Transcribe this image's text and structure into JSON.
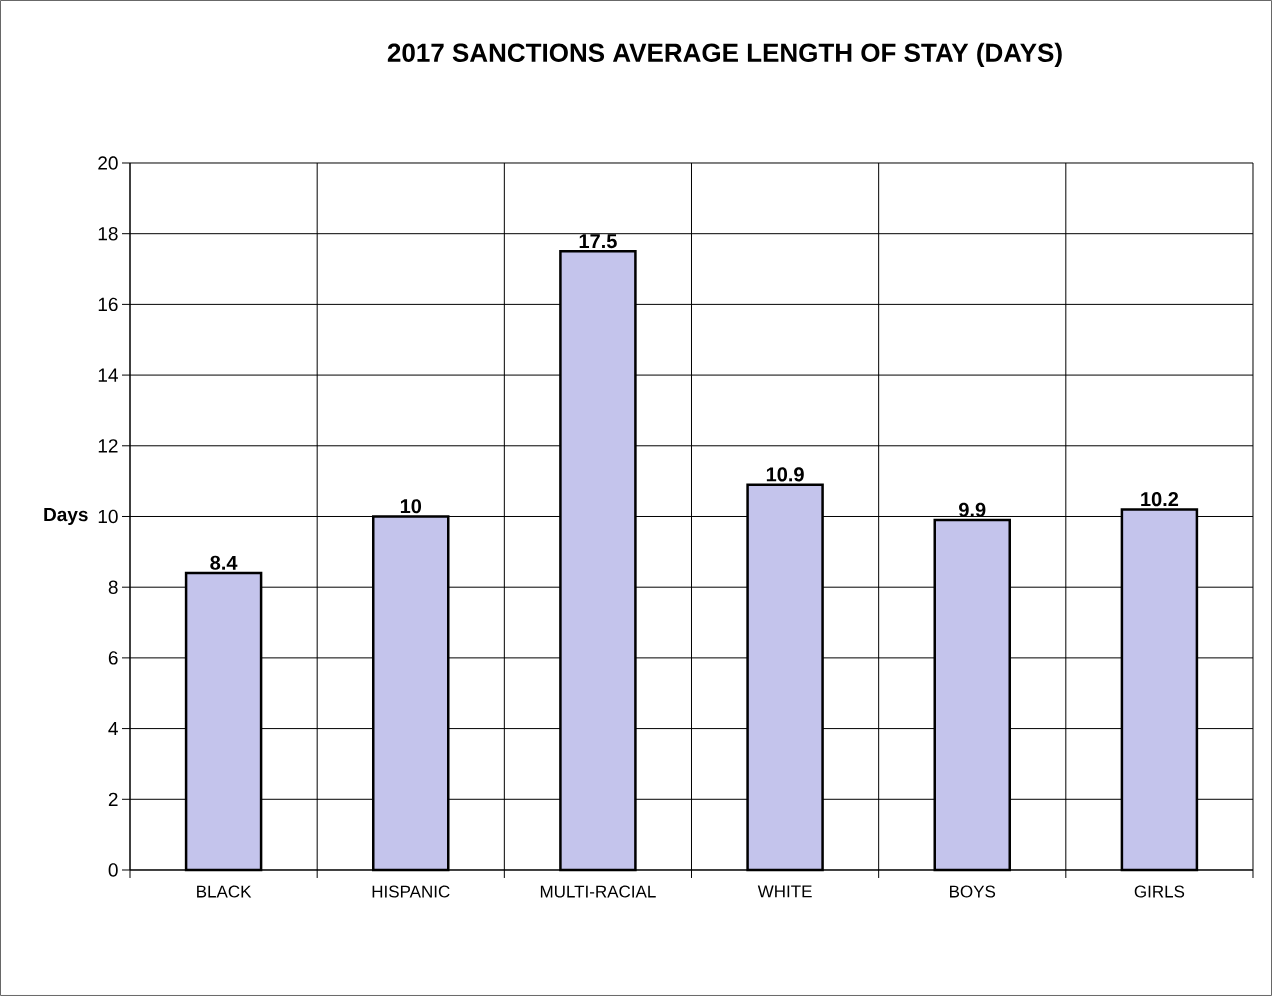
{
  "chart_data": {
    "type": "bar",
    "title": "2017 SANCTIONS AVERAGE LENGTH OF STAY (DAYS)",
    "ylabel": "Days",
    "categories": [
      "BLACK",
      "HISPANIC",
      "MULTI-RACIAL",
      "WHITE",
      "BOYS",
      "GIRLS"
    ],
    "values": [
      8.4,
      10,
      17.5,
      10.9,
      9.9,
      10.2
    ],
    "color": "#c4c4ec",
    "ylim": [
      0,
      20
    ],
    "yticks": [
      0,
      2,
      4,
      6,
      8,
      10,
      12,
      14,
      16,
      18,
      20
    ],
    "grid": true,
    "data_labels": true
  }
}
